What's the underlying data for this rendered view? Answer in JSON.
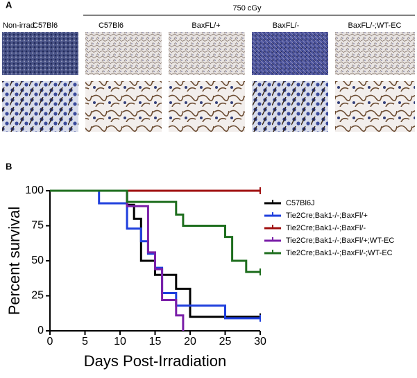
{
  "panel_a": {
    "panel_label": "A",
    "group_label": "750 cGy",
    "columns": [
      "Non-irrad",
      "C57Bl6",
      "C57Bl6",
      "BaxFL/+",
      "BaxFL/-",
      "BaxFL/-;WT-EC"
    ]
  },
  "chart_data": {
    "type": "line",
    "panel_label": "B",
    "step": true,
    "xlabel": "Days Post-Irradiation",
    "ylabel": "Percent survival",
    "xlim": [
      0,
      30
    ],
    "xticks": [
      0,
      5,
      10,
      15,
      20,
      25,
      30
    ],
    "ylim": [
      0,
      100
    ],
    "yticks": [
      0,
      25,
      50,
      75,
      100
    ],
    "series": [
      {
        "name": "C57Bl6J",
        "color": "#000000",
        "x": [
          0,
          11,
          12,
          13,
          15,
          18,
          20,
          30
        ],
        "values": [
          100,
          90,
          80,
          50,
          40,
          30,
          10,
          10
        ]
      },
      {
        "name": "Tie2Cre;Bak1-/-;BaxFl/+",
        "color": "#1f3fdd",
        "x": [
          0,
          7,
          11,
          13,
          14,
          15,
          16,
          18,
          25,
          30
        ],
        "values": [
          100,
          91,
          73,
          64,
          55,
          45,
          27,
          18,
          9,
          9
        ]
      },
      {
        "name": "Tie2Cre;Bak1-/-;BaxFl/-",
        "color": "#a01010",
        "x": [
          0,
          30
        ],
        "values": [
          100,
          100
        ]
      },
      {
        "name": "Tie2Cre;Bak1-/-;BaxFl/+;WT-EC",
        "color": "#7a1fa8",
        "x": [
          0,
          11,
          14,
          15,
          16,
          18,
          19
        ],
        "values": [
          100,
          89,
          56,
          44,
          22,
          11,
          0
        ]
      },
      {
        "name": "Tie2Cre;Bak1-/-;BaxFl/-;WT-EC",
        "color": "#1e6e1e",
        "x": [
          0,
          11,
          18,
          19,
          25,
          26,
          28,
          30
        ],
        "values": [
          100,
          92,
          83,
          75,
          67,
          50,
          42,
          42
        ]
      }
    ]
  }
}
